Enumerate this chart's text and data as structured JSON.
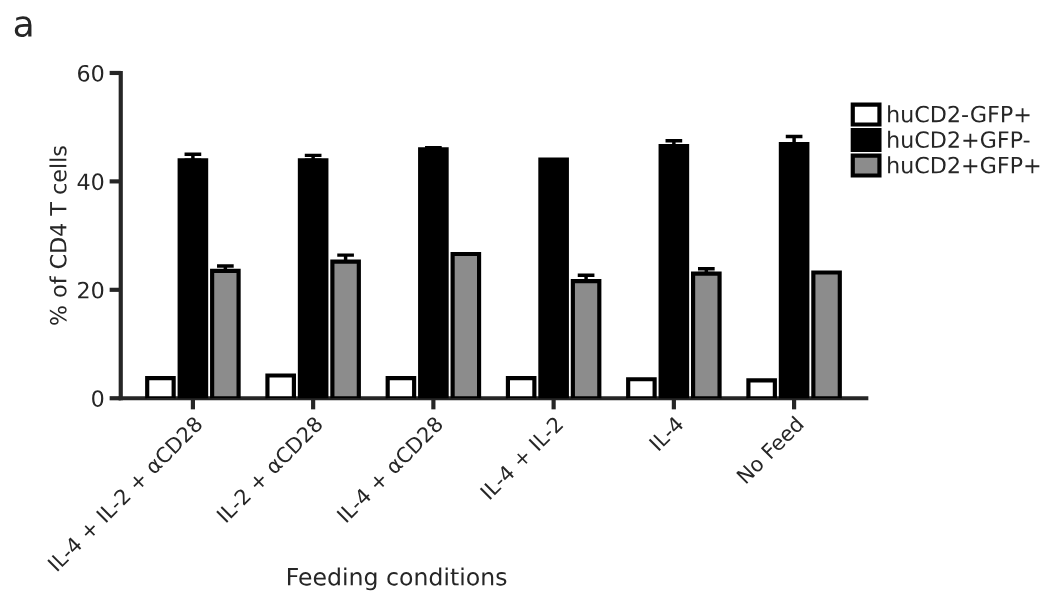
{
  "chart_data": {
    "type": "bar",
    "annotations": [
      "a"
    ],
    "xlabel": "Feeding conditions",
    "ylabel": "% of CD4 T cells",
    "categories": [
      "IL-4 + IL-2 + αCD28",
      "IL-2 + αCD28",
      "IL-4 + αCD28",
      "IL-4 + IL-2",
      "IL-4",
      "No Feed"
    ],
    "series": [
      {
        "name": "huCD2-GFP+",
        "color": "#ffffff",
        "values": [
          3.7,
          4.2,
          3.7,
          3.7,
          3.5,
          3.3
        ],
        "errors": [
          null,
          null,
          null,
          null,
          null,
          null
        ]
      },
      {
        "name": "huCD2+GFP-",
        "color": "#000000",
        "values": [
          43.9,
          43.9,
          45.9,
          44.0,
          46.5,
          46.9
        ],
        "errors": [
          1.1,
          0.9,
          0.3,
          null,
          1.0,
          1.4
        ]
      },
      {
        "name": "huCD2+GFP+",
        "color": "#8c8c8c",
        "values": [
          23.5,
          25.2,
          26.6,
          21.6,
          23.0,
          23.2
        ],
        "errors": [
          0.9,
          1.2,
          null,
          1.1,
          0.9,
          null
        ]
      }
    ],
    "ylim": [
      0,
      60
    ],
    "yticks": [
      0,
      20,
      40,
      60
    ],
    "grid": false,
    "legend": "top right"
  }
}
